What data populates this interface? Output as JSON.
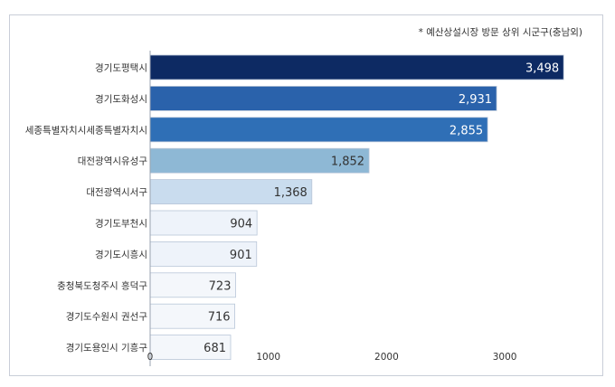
{
  "note": "* 예산상설시장 방문 상위 시군구(충남외)",
  "chart_data": {
    "type": "bar",
    "orientation": "horizontal",
    "categories": [
      "경기도평택시",
      "경기도화성시",
      "세종특별자치시세종특별자치시",
      "대전광역시유성구",
      "대전광역시서구",
      "경기도부천시",
      "경기도시흥시",
      "충청북도청주시 흥덕구",
      "경기도수원시 권선구",
      "경기도용인시 기흥구"
    ],
    "values": [
      3498,
      2931,
      2855,
      1852,
      1368,
      904,
      901,
      723,
      716,
      681
    ],
    "value_labels": [
      "3,498",
      "2,931",
      "2,855",
      "1,852",
      "1,368",
      "904",
      "901",
      "723",
      "716",
      "681"
    ],
    "bar_colors": [
      "#0d2a63",
      "#2a62ab",
      "#2f6fb6",
      "#8eb8d5",
      "#c9dcee",
      "#eef3fa",
      "#eef3fa",
      "#f4f7fb",
      "#f4f7fb",
      "#f4f7fb"
    ],
    "value_label_colors": [
      "#ffffff",
      "#ffffff",
      "#ffffff",
      "#333333",
      "#333333",
      "#333333",
      "#333333",
      "#333333",
      "#333333",
      "#333333"
    ],
    "xticks": [
      0,
      1000,
      2000,
      3000
    ],
    "xtick_labels": [
      "0",
      "1000",
      "2000",
      "3000"
    ],
    "xlim": [
      0,
      3600
    ],
    "grid": false,
    "title": "",
    "xlabel": "",
    "ylabel": ""
  }
}
